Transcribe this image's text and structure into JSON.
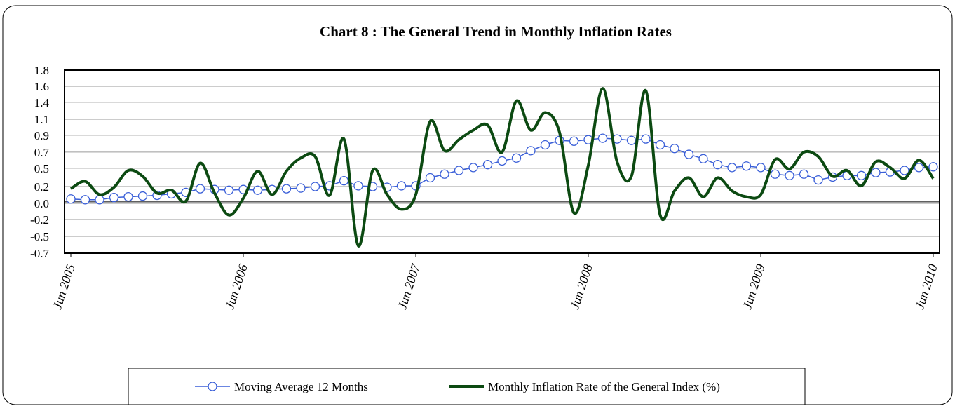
{
  "chart_data": {
    "type": "line",
    "title": "Chart 8 : The General Trend in Monthly Inflation Rates",
    "categories": [
      "Jun 2005",
      null,
      null,
      null,
      null,
      null,
      null,
      null,
      null,
      null,
      null,
      null,
      "Jun 2006",
      null,
      null,
      null,
      null,
      null,
      null,
      null,
      null,
      null,
      null,
      null,
      "Jun 2007",
      null,
      null,
      null,
      null,
      null,
      null,
      null,
      null,
      null,
      null,
      null,
      "Jun 2008",
      null,
      null,
      null,
      null,
      null,
      null,
      null,
      null,
      null,
      null,
      null,
      "Jun 2009",
      null,
      null,
      null,
      null,
      null,
      null,
      null,
      null,
      null,
      null,
      null,
      "Jun 2010"
    ],
    "series": [
      {
        "name": "Moving Average 12 Months",
        "color": "#3a5fd8",
        "marker": "circle",
        "values": [
          0.04,
          0.03,
          0.03,
          0.06,
          0.07,
          0.08,
          0.09,
          0.11,
          0.13,
          0.18,
          0.17,
          0.16,
          0.17,
          0.16,
          0.17,
          0.18,
          0.19,
          0.21,
          0.22,
          0.29,
          0.22,
          0.21,
          0.2,
          0.22,
          0.22,
          0.33,
          0.38,
          0.43,
          0.47,
          0.51,
          0.56,
          0.6,
          0.7,
          0.78,
          0.84,
          0.83,
          0.85,
          0.87,
          0.86,
          0.84,
          0.86,
          0.78,
          0.73,
          0.65,
          0.59,
          0.51,
          0.47,
          0.49,
          0.47,
          0.38,
          0.36,
          0.38,
          0.3,
          0.34,
          0.36,
          0.36,
          0.4,
          0.41,
          0.43,
          0.47,
          0.48
        ]
      },
      {
        "name": "Monthly Inflation Rate of the General Index (%)",
        "color": "#0c4a12",
        "marker": "none",
        "values": [
          0.18,
          0.28,
          0.1,
          0.2,
          0.43,
          0.35,
          0.12,
          0.16,
          0.01,
          0.53,
          0.12,
          -0.18,
          0.05,
          0.42,
          0.1,
          0.42,
          0.6,
          0.62,
          0.09,
          0.86,
          -0.6,
          0.43,
          0.1,
          -0.1,
          0.1,
          1.1,
          0.7,
          0.85,
          0.98,
          1.05,
          0.68,
          1.38,
          0.98,
          1.22,
          0.95,
          -0.15,
          0.5,
          1.55,
          0.55,
          0.35,
          1.52,
          -0.18,
          0.15,
          0.33,
          0.07,
          0.33,
          0.15,
          0.07,
          0.1,
          0.58,
          0.45,
          0.68,
          0.62,
          0.35,
          0.43,
          0.22,
          0.55,
          0.47,
          0.32,
          0.57,
          0.32
        ]
      }
    ],
    "ylim": [
      -0.7,
      1.8
    ],
    "yticks": [
      -0.7,
      {
        "value": -0.47,
        "label": "-0.5"
      },
      {
        "value": -0.24,
        "label": "-0.2"
      },
      {
        "value": -0.02,
        "label": "0.0"
      },
      {
        "value": 0.21,
        "label": "0.2"
      },
      {
        "value": 0.46,
        "label": "0.5"
      },
      {
        "value": 0.68,
        "label": "0.7"
      },
      {
        "value": 0.91,
        "label": "0.9"
      },
      {
        "value": 1.13,
        "label": "1.1"
      },
      {
        "value": 1.36,
        "label": "1.4"
      },
      {
        "value": 1.58,
        "label": "1.6"
      },
      1.8
    ],
    "grid": true,
    "legend": "bottom"
  }
}
